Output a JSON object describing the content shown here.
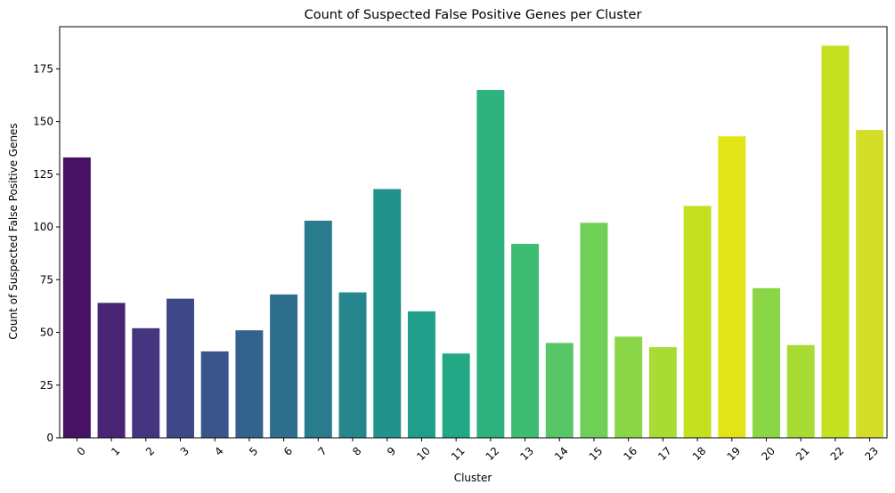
{
  "chart_data": {
    "type": "bar",
    "title": "Count of Suspected False Positive Genes per Cluster",
    "xlabel": "Cluster",
    "ylabel": "Count of Suspected False Positive Genes",
    "categories": [
      "0",
      "1",
      "2",
      "3",
      "4",
      "5",
      "6",
      "7",
      "8",
      "9",
      "10",
      "11",
      "12",
      "13",
      "14",
      "15",
      "16",
      "17",
      "18",
      "19",
      "20",
      "21",
      "22",
      "23"
    ],
    "values": [
      133,
      64,
      52,
      66,
      41,
      51,
      68,
      103,
      69,
      118,
      60,
      40,
      165,
      92,
      45,
      102,
      48,
      43,
      110,
      143,
      71,
      44,
      186,
      146
    ],
    "colors": [
      "#471164",
      "#482475",
      "#453581",
      "#3f4788",
      "#39558c",
      "#33638d",
      "#2e6f8e",
      "#297b8e",
      "#25878d",
      "#21928c",
      "#1f9e89",
      "#22a884",
      "#2db27d",
      "#3fbc73",
      "#56c667",
      "#70cf57",
      "#8bd646",
      "#a8db34",
      "#c5e021",
      "#e2e418",
      "#8bd646",
      "#a8db34",
      "#c5e021",
      "#d2de27"
    ],
    "yticks": [
      0,
      25,
      50,
      75,
      100,
      125,
      150,
      175
    ],
    "ylim": [
      0,
      195
    ],
    "grid": false,
    "legend": "none"
  }
}
